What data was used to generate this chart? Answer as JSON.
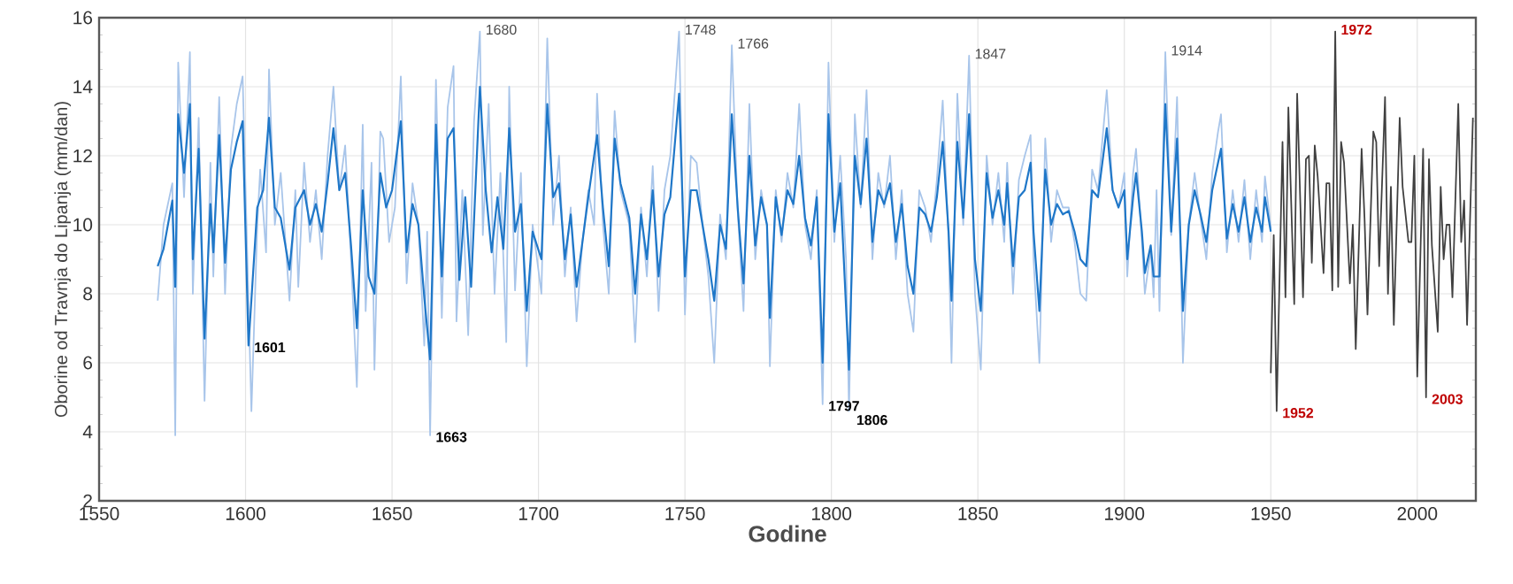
{
  "chart_data": {
    "type": "line",
    "xlabel": "Godine",
    "ylabel": "Oborine od Travnja do Lipanja (mm/dan)",
    "xlim": [
      1550,
      2020
    ],
    "ylim": [
      2,
      16
    ],
    "xticks": [
      1550,
      1600,
      1650,
      1700,
      1750,
      1800,
      1850,
      1900,
      1950,
      2000
    ],
    "yticks": [
      2,
      4,
      6,
      8,
      10,
      12,
      14,
      16
    ],
    "grid": true,
    "marker": "none",
    "line_style": "solid",
    "series": [
      {
        "color": "#a8c5ea",
        "x": [
          1570,
          1572,
          1575,
          1576,
          1577,
          1579,
          1581,
          1582,
          1584,
          1586,
          1588,
          1589,
          1591,
          1593,
          1595,
          1597,
          1599,
          1600,
          1602,
          1604,
          1605,
          1607,
          1608,
          1610,
          1612,
          1615,
          1617,
          1618,
          1620,
          1622,
          1624,
          1626,
          1628,
          1630,
          1632,
          1634,
          1636,
          1638,
          1640,
          1641,
          1643,
          1644,
          1646,
          1647,
          1649,
          1651,
          1653,
          1655,
          1657,
          1659,
          1661,
          1662,
          1663,
          1665,
          1667,
          1669,
          1671,
          1672,
          1674,
          1676,
          1678,
          1680,
          1681,
          1683,
          1685,
          1687,
          1689,
          1690,
          1692,
          1694,
          1696,
          1698,
          1701,
          1703,
          1705,
          1707,
          1709,
          1711,
          1713,
          1715,
          1717,
          1719,
          1720,
          1722,
          1724,
          1726,
          1728,
          1731,
          1733,
          1735,
          1737,
          1739,
          1741,
          1743,
          1745,
          1748,
          1750,
          1752,
          1754,
          1756,
          1758,
          1760,
          1762,
          1764,
          1766,
          1768,
          1770,
          1772,
          1774,
          1776,
          1778,
          1779,
          1781,
          1783,
          1785,
          1787,
          1789,
          1791,
          1793,
          1795,
          1797,
          1799,
          1801,
          1803,
          1805,
          1806,
          1808,
          1810,
          1812,
          1814,
          1816,
          1818,
          1820,
          1822,
          1824,
          1826,
          1828,
          1830,
          1832,
          1834,
          1836,
          1838,
          1840,
          1841,
          1843,
          1845,
          1847,
          1849,
          1851,
          1853,
          1855,
          1857,
          1859,
          1860,
          1862,
          1864,
          1866,
          1868,
          1869,
          1871,
          1873,
          1875,
          1877,
          1879,
          1881,
          1883,
          1885,
          1887,
          1889,
          1891,
          1894,
          1896,
          1898,
          1900,
          1901,
          1903,
          1904,
          1906,
          1907,
          1909,
          1910,
          1911,
          1912,
          1914,
          1916,
          1918,
          1920,
          1922,
          1924,
          1926,
          1928,
          1930,
          1932,
          1933,
          1935,
          1937,
          1939,
          1941,
          1943,
          1945,
          1947,
          1948,
          1950
        ],
        "values": [
          7.8,
          10.0,
          11.2,
          3.9,
          14.7,
          10.8,
          15.0,
          8.0,
          13.1,
          4.9,
          11.8,
          8.5,
          13.7,
          8.0,
          12.2,
          13.5,
          14.3,
          11.0,
          4.6,
          10.0,
          11.6,
          9.2,
          14.5,
          10.0,
          11.5,
          7.8,
          11.0,
          8.2,
          11.8,
          9.5,
          11.0,
          9.0,
          12.0,
          14.0,
          11.0,
          12.3,
          9.0,
          5.3,
          12.9,
          7.5,
          11.8,
          5.8,
          12.7,
          12.5,
          9.5,
          10.5,
          14.3,
          8.3,
          11.2,
          10.0,
          6.5,
          9.8,
          3.9,
          14.2,
          7.3,
          13.4,
          14.6,
          7.2,
          11.0,
          6.8,
          13.0,
          15.6,
          9.7,
          13.5,
          8.0,
          11.5,
          6.6,
          14.0,
          8.1,
          11.5,
          5.9,
          10.0,
          8.0,
          15.4,
          10.0,
          12.0,
          8.5,
          10.5,
          7.2,
          9.5,
          11.0,
          10.0,
          13.8,
          10.0,
          8.0,
          13.3,
          11.0,
          10.0,
          6.6,
          10.5,
          8.5,
          11.7,
          7.5,
          11.0,
          12.0,
          15.6,
          7.4,
          12.0,
          11.8,
          10.0,
          8.5,
          6.0,
          10.3,
          9.0,
          15.2,
          10.4,
          7.5,
          13.5,
          9.0,
          11.0,
          10.0,
          5.9,
          11.0,
          9.5,
          11.5,
          10.5,
          13.5,
          10.0,
          9.0,
          11.0,
          4.8,
          14.7,
          9.5,
          12.0,
          9.0,
          4.6,
          13.2,
          10.5,
          13.9,
          9.0,
          11.5,
          10.5,
          12.0,
          9.0,
          11.0,
          8.0,
          6.9,
          11.0,
          10.5,
          9.5,
          11.3,
          13.6,
          9.5,
          6.0,
          13.8,
          10.0,
          14.9,
          8.0,
          5.8,
          12.0,
          10.0,
          11.5,
          9.5,
          11.8,
          8.0,
          11.3,
          12.0,
          12.6,
          9.0,
          6.0,
          12.5,
          9.5,
          11.0,
          10.5,
          10.5,
          9.5,
          8.0,
          7.8,
          11.6,
          11.0,
          13.9,
          11.0,
          10.5,
          11.5,
          8.5,
          11.5,
          12.2,
          9.5,
          8.0,
          9.3,
          7.9,
          11.0,
          7.5,
          15.0,
          9.7,
          13.7,
          6.0,
          10.0,
          11.5,
          10.2,
          9.0,
          11.5,
          12.7,
          13.2,
          9.2,
          11.0,
          9.5,
          11.3,
          9.0,
          11.0,
          9.5,
          11.4,
          9.9
        ]
      },
      {
        "color": "#1f77c8",
        "x": [
          1570,
          1572,
          1575,
          1576,
          1577,
          1579,
          1581,
          1582,
          1584,
          1586,
          1588,
          1589,
          1591,
          1593,
          1595,
          1597,
          1599,
          1601,
          1604,
          1606,
          1608,
          1610,
          1612,
          1615,
          1617,
          1620,
          1622,
          1624,
          1626,
          1628,
          1630,
          1632,
          1634,
          1636,
          1638,
          1640,
          1642,
          1644,
          1646,
          1648,
          1650,
          1653,
          1655,
          1657,
          1659,
          1661,
          1663,
          1665,
          1667,
          1669,
          1671,
          1673,
          1675,
          1677,
          1680,
          1682,
          1684,
          1686,
          1688,
          1690,
          1692,
          1694,
          1696,
          1698,
          1701,
          1703,
          1705,
          1707,
          1709,
          1711,
          1713,
          1715,
          1717,
          1720,
          1722,
          1724,
          1726,
          1728,
          1731,
          1733,
          1735,
          1737,
          1739,
          1741,
          1743,
          1745,
          1748,
          1750,
          1752,
          1754,
          1756,
          1758,
          1760,
          1762,
          1764,
          1766,
          1768,
          1770,
          1772,
          1774,
          1776,
          1778,
          1779,
          1781,
          1783,
          1785,
          1787,
          1789,
          1791,
          1793,
          1795,
          1797,
          1799,
          1801,
          1803,
          1806,
          1808,
          1810,
          1812,
          1814,
          1816,
          1818,
          1820,
          1822,
          1824,
          1826,
          1828,
          1830,
          1832,
          1834,
          1836,
          1838,
          1840,
          1841,
          1843,
          1845,
          1847,
          1849,
          1851,
          1853,
          1855,
          1857,
          1859,
          1860,
          1862,
          1864,
          1866,
          1868,
          1869,
          1871,
          1873,
          1875,
          1877,
          1879,
          1881,
          1883,
          1885,
          1887,
          1889,
          1891,
          1894,
          1896,
          1898,
          1900,
          1901,
          1903,
          1904,
          1906,
          1907,
          1909,
          1910,
          1912,
          1914,
          1916,
          1918,
          1920,
          1922,
          1924,
          1926,
          1928,
          1930,
          1932,
          1933,
          1935,
          1937,
          1939,
          1941,
          1943,
          1945,
          1947,
          1948,
          1950
        ],
        "values": [
          8.8,
          9.3,
          10.7,
          8.2,
          13.2,
          11.5,
          13.5,
          9.0,
          12.2,
          6.7,
          10.6,
          9.2,
          12.6,
          8.9,
          11.6,
          12.4,
          13.0,
          6.5,
          10.5,
          11.0,
          13.1,
          10.5,
          10.2,
          8.7,
          10.5,
          11.0,
          10.0,
          10.6,
          9.8,
          11.2,
          12.8,
          11.0,
          11.5,
          9.4,
          7.0,
          11.0,
          8.5,
          8.0,
          11.5,
          10.5,
          11.0,
          13.0,
          9.2,
          10.6,
          10.0,
          7.9,
          6.1,
          12.9,
          8.5,
          12.5,
          12.8,
          8.4,
          10.8,
          8.2,
          14.0,
          11.0,
          9.2,
          10.8,
          9.3,
          12.8,
          9.8,
          10.6,
          7.5,
          9.8,
          9.0,
          13.5,
          10.8,
          11.2,
          9.0,
          10.3,
          8.2,
          9.5,
          10.8,
          12.6,
          10.5,
          8.8,
          12.5,
          11.2,
          10.2,
          8.0,
          10.3,
          9.0,
          11.0,
          8.5,
          10.3,
          10.8,
          13.8,
          8.5,
          11.0,
          11.0,
          10.0,
          9.0,
          7.8,
          10.0,
          9.3,
          13.2,
          10.5,
          8.3,
          12.0,
          9.4,
          10.8,
          10.0,
          7.3,
          10.8,
          9.7,
          11.0,
          10.6,
          12.0,
          10.2,
          9.4,
          10.8,
          6.0,
          13.2,
          9.8,
          11.2,
          5.8,
          12.0,
          10.6,
          12.5,
          9.5,
          11.0,
          10.6,
          11.2,
          9.5,
          10.6,
          8.8,
          8.0,
          10.5,
          10.3,
          9.8,
          10.8,
          12.4,
          9.8,
          7.8,
          12.4,
          10.2,
          13.2,
          9.0,
          7.5,
          11.5,
          10.2,
          11.0,
          10.0,
          11.2,
          8.8,
          10.8,
          11.0,
          11.8,
          9.8,
          7.5,
          11.6,
          10.0,
          10.6,
          10.3,
          10.4,
          9.8,
          9.0,
          8.8,
          11.0,
          10.8,
          12.8,
          11.0,
          10.5,
          11.0,
          9.0,
          10.8,
          11.5,
          9.8,
          8.6,
          9.4,
          8.5,
          8.5,
          13.5,
          9.8,
          12.5,
          7.5,
          10.0,
          11.0,
          10.3,
          9.5,
          11.0,
          11.8,
          12.2,
          9.6,
          10.6,
          9.8,
          10.8,
          9.5,
          10.5,
          9.8,
          10.8,
          9.8
        ]
      },
      {
        "color": "#404040",
        "x": [
          1950,
          1951,
          1952,
          1954,
          1955,
          1956,
          1958,
          1959,
          1961,
          1962,
          1963,
          1964,
          1965,
          1966,
          1967,
          1968,
          1969,
          1970,
          1971,
          1972,
          1973,
          1974,
          1975,
          1977,
          1978,
          1979,
          1981,
          1982,
          1983,
          1985,
          1986,
          1987,
          1989,
          1990,
          1991,
          1992,
          1994,
          1995,
          1997,
          1998,
          1999,
          2000,
          2002,
          2003,
          2004,
          2005,
          2007,
          2008,
          2009,
          2010,
          2011,
          2012,
          2014,
          2015,
          2016,
          2017,
          2019
        ],
        "values": [
          5.7,
          9.7,
          4.6,
          12.4,
          7.9,
          13.4,
          7.7,
          13.8,
          7.9,
          11.9,
          12.0,
          8.9,
          12.3,
          11.4,
          10.0,
          8.6,
          11.2,
          11.2,
          8.1,
          15.6,
          8.2,
          12.4,
          11.8,
          8.3,
          10.0,
          6.4,
          12.2,
          10.2,
          7.4,
          12.7,
          12.4,
          8.8,
          13.7,
          8.0,
          11.1,
          7.1,
          13.1,
          11.1,
          9.5,
          9.5,
          12.0,
          5.6,
          12.2,
          5.0,
          11.9,
          9.4,
          6.9,
          11.1,
          9.0,
          10.0,
          10.0,
          7.9,
          13.5,
          9.5,
          10.7,
          7.1,
          13.1
        ]
      }
    ],
    "annotations": [
      {
        "text": "1601",
        "x": 1601,
        "y": 6.5
      },
      {
        "text": "1663",
        "x": 1663,
        "y": 3.9
      },
      {
        "text": "1680",
        "x": 1680,
        "y": 15.6
      },
      {
        "text": "1748",
        "x": 1748,
        "y": 15.6
      },
      {
        "text": "1766",
        "x": 1766,
        "y": 15.2
      },
      {
        "text": "1797",
        "x": 1797,
        "y": 4.8
      },
      {
        "text": "1806",
        "x": 1806,
        "y": 4.6
      },
      {
        "text": "1847",
        "x": 1847,
        "y": 14.9
      },
      {
        "text": "1914",
        "x": 1914,
        "y": 15.0
      },
      {
        "text": "1952",
        "x": 1952,
        "y": 4.6
      },
      {
        "text": "1972",
        "x": 1972,
        "y": 15.6
      },
      {
        "text": "2003",
        "x": 2003,
        "y": 5.0
      }
    ]
  }
}
